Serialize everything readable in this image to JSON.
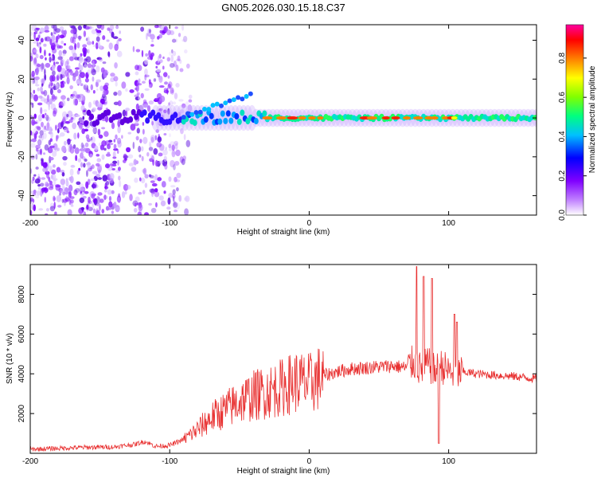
{
  "chart_data": [
    {
      "type": "heatmap",
      "title": "GN05.2026.030.15.18.C37",
      "xlabel": "Height of straight line (km)",
      "ylabel": "Frequency (Hz)",
      "xlim": [
        -200,
        163
      ],
      "ylim": [
        -50,
        48
      ],
      "xticks": [
        -200,
        -100,
        0,
        100
      ],
      "xtick_labels": [
        "-200",
        "-100",
        "0",
        "100"
      ],
      "yticks": [
        -40,
        -20,
        0,
        20,
        40
      ],
      "ytick_labels": [
        "-40",
        "-20",
        "0",
        "20",
        "40"
      ],
      "grid": false,
      "description_of_content": "spectral ridge near 0 Hz widening with noise below -100 km",
      "colorbar": {
        "label": "Normalized spectral amplitude",
        "range": [
          0.0,
          0.97
        ],
        "ticks": [
          0.0,
          0.2,
          0.4,
          0.6,
          0.8
        ],
        "tick_labels": [
          "0.0",
          "0.2",
          "0.4",
          "0.6",
          "0.8"
        ],
        "colors": [
          "#ffffff",
          "#8000ff",
          "#0000ff",
          "#00c0ff",
          "#00ff80",
          "#80ff00",
          "#ffff00",
          "#ff8000",
          "#ff0000",
          "#ff00a0"
        ]
      }
    },
    {
      "type": "line",
      "title": "",
      "xlabel": "Height of straight line (km)",
      "ylabel": "SNR (10 * v/v)",
      "xlim": [
        -200,
        163
      ],
      "ylim": [
        0,
        9500
      ],
      "xticks": [
        -200,
        -100,
        0,
        100
      ],
      "xtick_labels": [
        "-200",
        "-100",
        "0",
        "100"
      ],
      "yticks": [
        2000,
        4000,
        6000,
        8000
      ],
      "ytick_labels": [
        "2000",
        "4000",
        "6000",
        "8000"
      ],
      "grid": false,
      "color": "#e83030",
      "series": [
        {
          "name": "SNR",
          "x": [
            -200,
            -180,
            -160,
            -140,
            -125,
            -118,
            -110,
            -100,
            -90,
            -80,
            -70,
            -60,
            -50,
            -40,
            -30,
            -20,
            -10,
            0,
            10,
            20,
            30,
            40,
            50,
            60,
            70,
            75,
            80,
            85,
            90,
            95,
            100,
            105,
            110,
            120,
            130,
            140,
            150,
            163
          ],
          "y": [
            200,
            250,
            300,
            320,
            450,
            600,
            350,
            400,
            700,
            1200,
            1800,
            2200,
            2600,
            2900,
            3100,
            3300,
            3600,
            3500,
            3900,
            4100,
            4250,
            4300,
            4350,
            4400,
            4300,
            4600,
            4200,
            4500,
            4100,
            4400,
            4100,
            4000,
            4100,
            4000,
            3950,
            3900,
            3850,
            3750
          ],
          "peaks": [
            {
              "x": 77,
              "y": 9400
            },
            {
              "x": 82,
              "y": 8900
            },
            {
              "x": 88,
              "y": 8800
            },
            {
              "x": 93,
              "y": 500
            },
            {
              "x": 104,
              "y": 7000
            },
            {
              "x": 106,
              "y": 6600
            }
          ]
        }
      ]
    }
  ]
}
